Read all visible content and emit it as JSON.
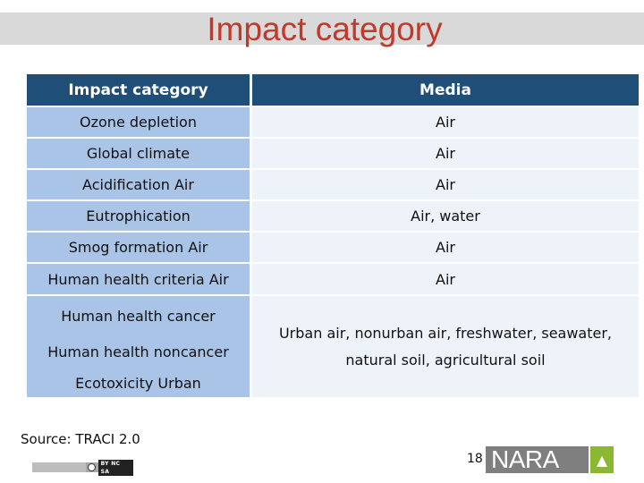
{
  "slide": {
    "title": "Impact category",
    "source": "Source: TRACI 2.0",
    "page_number": "18",
    "logo_text": "NARA",
    "license_badge": "BY NC SA"
  },
  "table": {
    "headers": [
      "Impact category",
      "Media"
    ],
    "rows": [
      [
        "Ozone depletion",
        "Air"
      ],
      [
        "Global climate",
        "Air"
      ],
      [
        "Acidification Air",
        "Air"
      ],
      [
        "Eutrophication",
        "Air, water"
      ],
      [
        "Smog formation Air",
        "Air"
      ],
      [
        "Human health criteria Air",
        "Air"
      ]
    ],
    "merged_group": {
      "categories": [
        "Human health cancer",
        "Human health noncancer",
        "Ecotoxicity Urban"
      ],
      "media_line1": "Urban air, nonurban air, freshwater, seawater,",
      "media_line2": "natural soil, agricultural soil"
    }
  }
}
